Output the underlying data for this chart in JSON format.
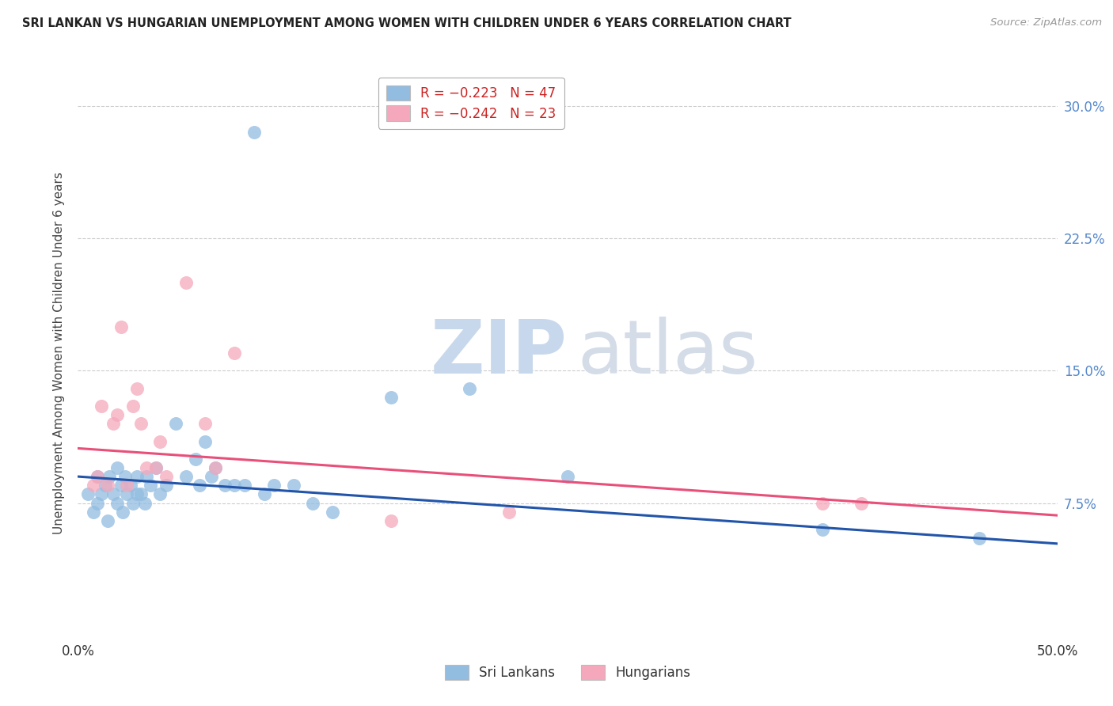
{
  "title": "SRI LANKAN VS HUNGARIAN UNEMPLOYMENT AMONG WOMEN WITH CHILDREN UNDER 6 YEARS CORRELATION CHART",
  "source": "Source: ZipAtlas.com",
  "ylabel": "Unemployment Among Women with Children Under 6 years",
  "xlim": [
    0.0,
    0.5
  ],
  "ylim": [
    0.0,
    0.32
  ],
  "yticks": [
    0.075,
    0.15,
    0.225,
    0.3
  ],
  "ytick_labels": [
    "7.5%",
    "15.0%",
    "22.5%",
    "30.0%"
  ],
  "legend_label1": "Sri Lankans",
  "legend_label2": "Hungarians",
  "sri_lankan_color": "#92bce0",
  "hungarian_color": "#f5a8bc",
  "sri_lankan_line_color": "#2255aa",
  "hungarian_line_color": "#e8507a",
  "background_color": "#ffffff",
  "grid_color": "#cccccc",
  "legend_entry1": "R = −0.223   N = 47",
  "legend_entry2": "R = −0.242   N = 23",
  "legend_r1_color": "#cc2222",
  "legend_r2_color": "#cc2222",
  "sl_line_x0": 0.0,
  "sl_line_y0": 0.09,
  "sl_line_x1": 0.5,
  "sl_line_y1": 0.052,
  "hu_line_x0": 0.0,
  "hu_line_y0": 0.106,
  "hu_line_x1": 0.5,
  "hu_line_y1": 0.068,
  "sri_lankans_x": [
    0.005,
    0.008,
    0.01,
    0.01,
    0.012,
    0.014,
    0.015,
    0.016,
    0.018,
    0.02,
    0.02,
    0.022,
    0.023,
    0.024,
    0.025,
    0.027,
    0.028,
    0.03,
    0.03,
    0.032,
    0.034,
    0.035,
    0.037,
    0.04,
    0.042,
    0.045,
    0.05,
    0.055,
    0.06,
    0.062,
    0.065,
    0.068,
    0.07,
    0.075,
    0.08,
    0.085,
    0.09,
    0.095,
    0.1,
    0.11,
    0.12,
    0.13,
    0.16,
    0.2,
    0.25,
    0.38,
    0.46
  ],
  "sri_lankans_y": [
    0.08,
    0.07,
    0.09,
    0.075,
    0.08,
    0.085,
    0.065,
    0.09,
    0.08,
    0.095,
    0.075,
    0.085,
    0.07,
    0.09,
    0.08,
    0.085,
    0.075,
    0.09,
    0.08,
    0.08,
    0.075,
    0.09,
    0.085,
    0.095,
    0.08,
    0.085,
    0.12,
    0.09,
    0.1,
    0.085,
    0.11,
    0.09,
    0.095,
    0.085,
    0.085,
    0.085,
    0.285,
    0.08,
    0.085,
    0.085,
    0.075,
    0.07,
    0.135,
    0.14,
    0.09,
    0.06,
    0.055
  ],
  "hungarians_x": [
    0.008,
    0.01,
    0.012,
    0.015,
    0.018,
    0.02,
    0.022,
    0.025,
    0.028,
    0.03,
    0.032,
    0.035,
    0.04,
    0.042,
    0.045,
    0.055,
    0.065,
    0.07,
    0.08,
    0.16,
    0.22,
    0.38,
    0.4
  ],
  "hungarians_y": [
    0.085,
    0.09,
    0.13,
    0.085,
    0.12,
    0.125,
    0.175,
    0.085,
    0.13,
    0.14,
    0.12,
    0.095,
    0.095,
    0.11,
    0.09,
    0.2,
    0.12,
    0.095,
    0.16,
    0.065,
    0.07,
    0.075,
    0.075
  ]
}
